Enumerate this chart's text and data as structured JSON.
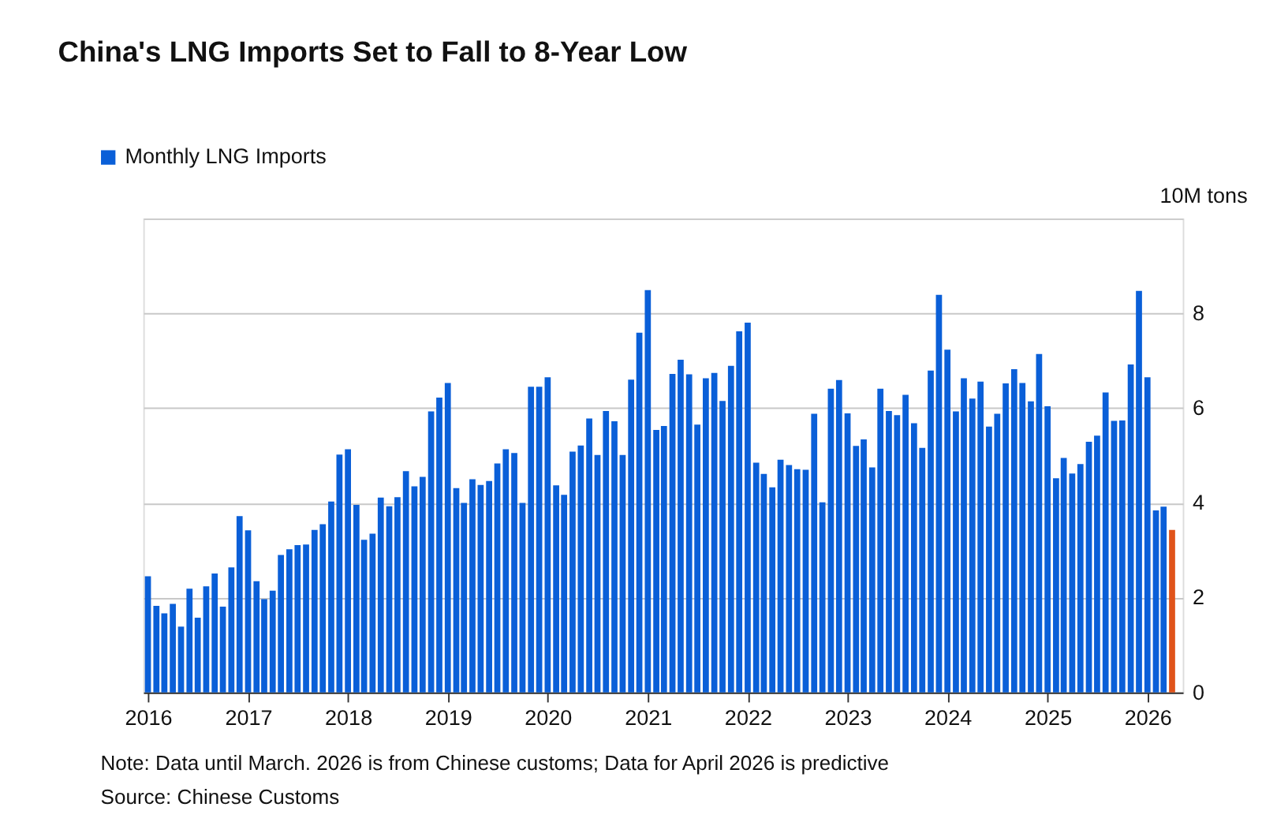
{
  "chart_data": {
    "type": "bar",
    "title": "China's LNG Imports Set to Fall to 8-Year Low",
    "annotations": [
      "Note: Data until March. 2026 is from Chinese customs; Data for April 2026 is predictive",
      "Source: Chinese Customs"
    ],
    "x": [
      "2016-01",
      "2016-02",
      "2016-03",
      "2016-04",
      "2016-05",
      "2016-06",
      "2016-07",
      "2016-08",
      "2016-09",
      "2016-10",
      "2016-11",
      "2016-12",
      "2017-01",
      "2017-02",
      "2017-03",
      "2017-04",
      "2017-05",
      "2017-06",
      "2017-07",
      "2017-08",
      "2017-09",
      "2017-10",
      "2017-11",
      "2017-12",
      "2018-01",
      "2018-02",
      "2018-03",
      "2018-04",
      "2018-05",
      "2018-06",
      "2018-07",
      "2018-08",
      "2018-09",
      "2018-10",
      "2018-11",
      "2018-12",
      "2019-01",
      "2019-02",
      "2019-03",
      "2019-04",
      "2019-05",
      "2019-06",
      "2019-07",
      "2019-08",
      "2019-09",
      "2019-10",
      "2019-11",
      "2019-12",
      "2020-01",
      "2020-02",
      "2020-03",
      "2020-04",
      "2020-05",
      "2020-06",
      "2020-07",
      "2020-08",
      "2020-09",
      "2020-10",
      "2020-11",
      "2020-12",
      "2021-01",
      "2021-02",
      "2021-03",
      "2021-04",
      "2021-05",
      "2021-06",
      "2021-07",
      "2021-08",
      "2021-09",
      "2021-10",
      "2021-11",
      "2021-12",
      "2022-01",
      "2022-02",
      "2022-03",
      "2022-04",
      "2022-05",
      "2022-06",
      "2022-07",
      "2022-08",
      "2022-09",
      "2022-10",
      "2022-11",
      "2022-12",
      "2023-01",
      "2023-02",
      "2023-03",
      "2023-04",
      "2023-05",
      "2023-06",
      "2023-07",
      "2023-08",
      "2023-09",
      "2023-10",
      "2023-11",
      "2023-12",
      "2024-01",
      "2024-02",
      "2024-03",
      "2024-04",
      "2024-05",
      "2024-06",
      "2024-07",
      "2024-08",
      "2024-09",
      "2024-10",
      "2024-11",
      "2024-12",
      "2025-01",
      "2025-02",
      "2025-03",
      "2025-04",
      "2025-05",
      "2025-06",
      "2025-07",
      "2025-08",
      "2025-09",
      "2025-10",
      "2025-11",
      "2025-12",
      "2026-01",
      "2026-02",
      "2026-03",
      "2026-04"
    ],
    "series": [
      {
        "name": "Monthly LNG Imports",
        "color": "#0a5fd8",
        "colors": [
          "#0a5fd8",
          "#0a5fd8",
          "#0a5fd8",
          "#0a5fd8",
          "#0a5fd8",
          "#0a5fd8",
          "#0a5fd8",
          "#0a5fd8",
          "#0a5fd8",
          "#0a5fd8",
          "#0a5fd8",
          "#0a5fd8",
          "#0a5fd8",
          "#0a5fd8",
          "#0a5fd8",
          "#0a5fd8",
          "#0a5fd8",
          "#0a5fd8",
          "#0a5fd8",
          "#0a5fd8",
          "#0a5fd8",
          "#0a5fd8",
          "#0a5fd8",
          "#0a5fd8",
          "#0a5fd8",
          "#0a5fd8",
          "#0a5fd8",
          "#0a5fd8",
          "#0a5fd8",
          "#0a5fd8",
          "#0a5fd8",
          "#0a5fd8",
          "#0a5fd8",
          "#0a5fd8",
          "#0a5fd8",
          "#0a5fd8",
          "#0a5fd8",
          "#0a5fd8",
          "#0a5fd8",
          "#0a5fd8",
          "#0a5fd8",
          "#0a5fd8",
          "#0a5fd8",
          "#0a5fd8",
          "#0a5fd8",
          "#0a5fd8",
          "#0a5fd8",
          "#0a5fd8",
          "#0a5fd8",
          "#0a5fd8",
          "#0a5fd8",
          "#0a5fd8",
          "#0a5fd8",
          "#0a5fd8",
          "#0a5fd8",
          "#0a5fd8",
          "#0a5fd8",
          "#0a5fd8",
          "#0a5fd8",
          "#0a5fd8",
          "#0a5fd8",
          "#0a5fd8",
          "#0a5fd8",
          "#0a5fd8",
          "#0a5fd8",
          "#0a5fd8",
          "#0a5fd8",
          "#0a5fd8",
          "#0a5fd8",
          "#0a5fd8",
          "#0a5fd8",
          "#0a5fd8",
          "#0a5fd8",
          "#0a5fd8",
          "#0a5fd8",
          "#0a5fd8",
          "#0a5fd8",
          "#0a5fd8",
          "#0a5fd8",
          "#0a5fd8",
          "#0a5fd8",
          "#0a5fd8",
          "#0a5fd8",
          "#0a5fd8",
          "#0a5fd8",
          "#0a5fd8",
          "#0a5fd8",
          "#0a5fd8",
          "#0a5fd8",
          "#0a5fd8",
          "#0a5fd8",
          "#0a5fd8",
          "#0a5fd8",
          "#0a5fd8",
          "#0a5fd8",
          "#0a5fd8",
          "#0a5fd8",
          "#0a5fd8",
          "#0a5fd8",
          "#0a5fd8",
          "#0a5fd8",
          "#0a5fd8",
          "#0a5fd8",
          "#0a5fd8",
          "#0a5fd8",
          "#0a5fd8",
          "#0a5fd8",
          "#0a5fd8",
          "#0a5fd8",
          "#0a5fd8",
          "#0a5fd8",
          "#0a5fd8",
          "#0a5fd8",
          "#0a5fd8",
          "#0a5fd8",
          "#0a5fd8",
          "#0a5fd8",
          "#0a5fd8",
          "#0a5fd8",
          "#0a5fd8",
          "#0a5fd8",
          "#0a5fd8",
          "#0a5fd8",
          "#e0531a"
        ],
        "values": [
          2.45,
          1.83,
          1.67,
          1.87,
          1.39,
          2.19,
          1.58,
          2.24,
          2.51,
          1.81,
          2.64,
          3.72,
          3.42,
          2.35,
          1.97,
          2.15,
          2.9,
          3.02,
          3.11,
          3.12,
          3.43,
          3.55,
          4.03,
          5.02,
          5.13,
          3.96,
          3.22,
          3.35,
          4.11,
          3.93,
          4.12,
          4.67,
          4.35,
          4.55,
          5.93,
          6.22,
          6.53,
          4.31,
          4.0,
          4.5,
          4.38,
          4.46,
          4.83,
          5.13,
          5.05,
          4.0,
          6.45,
          6.45,
          6.65,
          4.37,
          4.17,
          5.08,
          5.21,
          5.78,
          5.01,
          5.94,
          5.72,
          5.01,
          6.6,
          7.59,
          8.49,
          5.54,
          5.62,
          6.72,
          7.02,
          6.71,
          5.65,
          6.63,
          6.74,
          6.15,
          6.89,
          7.62,
          7.8,
          4.85,
          4.61,
          4.33,
          4.91,
          4.8,
          4.71,
          4.7,
          5.88,
          4.01,
          6.41,
          6.59,
          5.89,
          5.2,
          5.34,
          4.75,
          6.41,
          5.94,
          5.85,
          6.28,
          5.68,
          5.16,
          6.79,
          8.39,
          7.23,
          5.93,
          6.63,
          6.2,
          6.56,
          5.61,
          5.88,
          6.52,
          6.82,
          6.53,
          6.14,
          7.14,
          6.04,
          4.52,
          4.95,
          4.62,
          4.82,
          5.29,
          5.42,
          6.33,
          5.73,
          5.74,
          6.92,
          8.47,
          6.65,
          3.84,
          3.92,
          3.43
        ]
      }
    ],
    "xlim": [
      "2015-12-15",
      "2026-05-10"
    ],
    "xticks": [
      "2016",
      "2017",
      "2018",
      "2019",
      "2020",
      "2021",
      "2022",
      "2023",
      "2024",
      "2025",
      "2026"
    ],
    "ylim": [
      0,
      10
    ],
    "ylabel": "10M tons",
    "yticks": [
      0,
      2,
      4,
      6,
      8,
      {
        "value": 10,
        "label": null
      }
    ],
    "grid": "y",
    "legend": "top left"
  }
}
